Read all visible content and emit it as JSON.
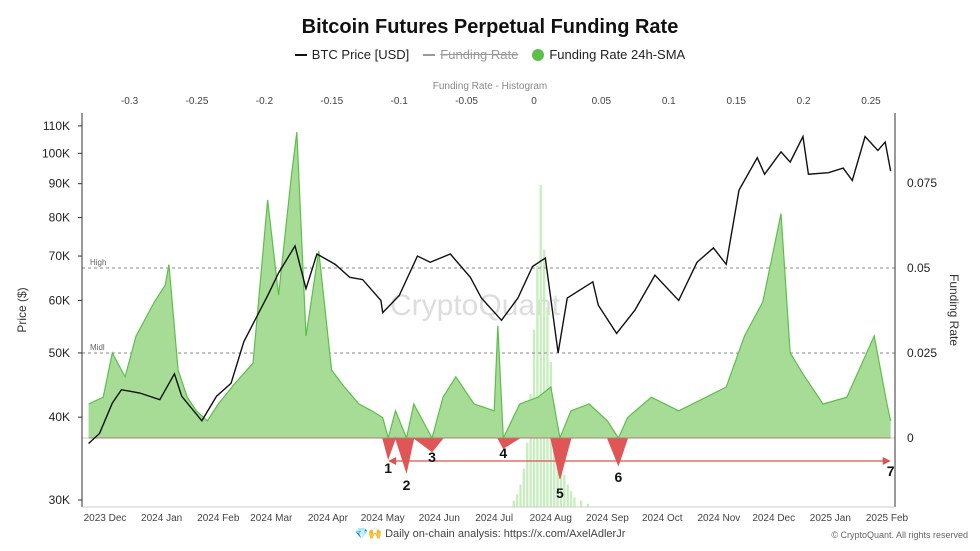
{
  "title": "Bitcoin Futures Perpetual Funding Rate",
  "legend": [
    {
      "label": "BTC Price [USD]",
      "color": "#111111",
      "style": "line"
    },
    {
      "label": "Funding Rate",
      "color": "#999999",
      "style": "line",
      "hidden": true
    },
    {
      "label": "Funding Rate 24h-SMA",
      "color": "#5cbf4a",
      "style": "dot"
    }
  ],
  "footer": {
    "text": "Daily on-chain analysis:",
    "link": "https://x.com/AxelAdlerJr",
    "icons": [
      "gem-icon",
      "raised-hands-icon"
    ],
    "copyright": "© CryptoQuant. All rights reserved"
  },
  "watermark": "CryptoQuant",
  "colors": {
    "price": "#111111",
    "sma_pos": "#5cbf4a",
    "sma_fill": "#a6dc96",
    "sma_neg": "#e05555",
    "hist": "#c8eec0",
    "arrow": "#d9534f",
    "grid": "#888888"
  },
  "chart_data": {
    "type": "line",
    "title": "Bitcoin Futures Perpetual Funding Rate",
    "x_axis": {
      "type": "date",
      "ticks": [
        "2023 Dec",
        "2024 Jan",
        "2024 Feb",
        "2024 Mar",
        "2024 Apr",
        "2024 May",
        "2024 Jun",
        "2024 Jul",
        "2024 Aug",
        "2024 Sep",
        "2024 Oct",
        "2024 Nov",
        "2024 Dec",
        "2025 Jan",
        "2025 Feb"
      ],
      "tick_dates": [
        "2023-12-01",
        "2024-01-01",
        "2024-02-01",
        "2024-03-01",
        "2024-04-01",
        "2024-05-01",
        "2024-06-01",
        "2024-07-01",
        "2024-08-01",
        "2024-09-01",
        "2024-10-01",
        "2024-11-01",
        "2024-12-01",
        "2025-01-01",
        "2025-02-01"
      ]
    },
    "y_left": {
      "label": "Price ($)",
      "scale": "log",
      "range": [
        30000,
        110000
      ],
      "ticks": [
        30000,
        40000,
        50000,
        60000,
        70000,
        80000,
        90000,
        100000,
        110000
      ],
      "tick_labels": [
        "30K",
        "40K",
        "50K",
        "60K",
        "70K",
        "80K",
        "90K",
        "100K",
        "110K"
      ]
    },
    "y_right": {
      "label": "Funding Rate",
      "range": [
        -0.02,
        0.09
      ],
      "ticks": [
        0,
        0.025,
        0.05,
        0.075
      ],
      "tick_labels": [
        "0",
        "0.025",
        "0.05",
        "0.075"
      ]
    },
    "x_top": {
      "label": "Funding Rate - Histogram",
      "ticks": [
        -0.3,
        -0.25,
        -0.2,
        -0.15,
        -0.1,
        -0.05,
        0,
        0.05,
        0.1,
        0.15,
        0.2,
        0.25
      ],
      "tick_labels": [
        "-0.3",
        "-0.25",
        "-0.2",
        "-0.15",
        "-0.1",
        "-0.05",
        "0",
        "0.05",
        "0.1",
        "0.15",
        "0.2",
        "0.25"
      ]
    },
    "reference_lines": [
      {
        "label": "High",
        "value": 0.05
      },
      {
        "label": "Midl",
        "value": 0.025
      }
    ],
    "series": [
      {
        "name": "BTC Price [USD]",
        "axis": "left",
        "points": [
          [
            "2023-11-22",
            36500
          ],
          [
            "2023-11-28",
            37800
          ],
          [
            "2023-12-05",
            42000
          ],
          [
            "2023-12-10",
            44000
          ],
          [
            "2023-12-20",
            43500
          ],
          [
            "2023-12-31",
            42500
          ],
          [
            "2024-01-08",
            46500
          ],
          [
            "2024-01-12",
            43000
          ],
          [
            "2024-01-23",
            39500
          ],
          [
            "2024-01-31",
            43000
          ],
          [
            "2024-02-08",
            45000
          ],
          [
            "2024-02-15",
            52000
          ],
          [
            "2024-02-28",
            61000
          ],
          [
            "2024-03-05",
            66000
          ],
          [
            "2024-03-14",
            72500
          ],
          [
            "2024-03-20",
            62500
          ],
          [
            "2024-03-26",
            70500
          ],
          [
            "2024-04-05",
            68000
          ],
          [
            "2024-04-13",
            65000
          ],
          [
            "2024-04-20",
            64500
          ],
          [
            "2024-04-30",
            60000
          ],
          [
            "2024-05-01",
            57500
          ],
          [
            "2024-05-10",
            61000
          ],
          [
            "2024-05-20",
            70000
          ],
          [
            "2024-05-27",
            68500
          ],
          [
            "2024-06-07",
            70500
          ],
          [
            "2024-06-18",
            65000
          ],
          [
            "2024-06-24",
            60500
          ],
          [
            "2024-07-05",
            56000
          ],
          [
            "2024-07-14",
            60500
          ],
          [
            "2024-07-22",
            67500
          ],
          [
            "2024-07-29",
            69500
          ],
          [
            "2024-08-05",
            50000
          ],
          [
            "2024-08-10",
            60500
          ],
          [
            "2024-08-24",
            64000
          ],
          [
            "2024-08-27",
            59000
          ],
          [
            "2024-09-06",
            53500
          ],
          [
            "2024-09-16",
            58000
          ],
          [
            "2024-09-27",
            65500
          ],
          [
            "2024-10-10",
            60000
          ],
          [
            "2024-10-20",
            68500
          ],
          [
            "2024-10-29",
            72000
          ],
          [
            "2024-11-05",
            68000
          ],
          [
            "2024-11-12",
            88000
          ],
          [
            "2024-11-22",
            98500
          ],
          [
            "2024-11-26",
            93000
          ],
          [
            "2024-12-05",
            100500
          ],
          [
            "2024-12-10",
            97000
          ],
          [
            "2024-12-17",
            106000
          ],
          [
            "2024-12-20",
            93000
          ],
          [
            "2024-12-31",
            93500
          ],
          [
            "2025-01-08",
            95000
          ],
          [
            "2025-01-13",
            91000
          ],
          [
            "2025-01-20",
            106000
          ],
          [
            "2025-01-27",
            101000
          ],
          [
            "2025-01-31",
            104000
          ],
          [
            "2025-02-03",
            94000
          ]
        ]
      },
      {
        "name": "Funding Rate 24h-SMA",
        "axis": "right",
        "points": [
          [
            "2023-11-22",
            0.01
          ],
          [
            "2023-11-30",
            0.012
          ],
          [
            "2023-12-05",
            0.025
          ],
          [
            "2023-12-12",
            0.018
          ],
          [
            "2023-12-18",
            0.03
          ],
          [
            "2023-12-28",
            0.04
          ],
          [
            "2024-01-03",
            0.045
          ],
          [
            "2024-01-05",
            0.051
          ],
          [
            "2024-01-10",
            0.02
          ],
          [
            "2024-01-15",
            0.012
          ],
          [
            "2024-01-20",
            0.008
          ],
          [
            "2024-01-26",
            0.005
          ],
          [
            "2024-02-01",
            0.01
          ],
          [
            "2024-02-10",
            0.016
          ],
          [
            "2024-02-20",
            0.022
          ],
          [
            "2024-02-28",
            0.07
          ],
          [
            "2024-03-05",
            0.042
          ],
          [
            "2024-03-12",
            0.077
          ],
          [
            "2024-03-15",
            0.09
          ],
          [
            "2024-03-20",
            0.03
          ],
          [
            "2024-03-27",
            0.055
          ],
          [
            "2024-04-03",
            0.02
          ],
          [
            "2024-04-10",
            0.015
          ],
          [
            "2024-04-18",
            0.01
          ],
          [
            "2024-04-25",
            0.008
          ],
          [
            "2024-05-01",
            0.006
          ],
          [
            "2024-05-04",
            -0.006
          ],
          [
            "2024-05-08",
            0.008
          ],
          [
            "2024-05-14",
            -0.01
          ],
          [
            "2024-05-18",
            0.01
          ],
          [
            "2024-05-28",
            -0.004
          ],
          [
            "2024-06-03",
            0.012
          ],
          [
            "2024-06-10",
            0.018
          ],
          [
            "2024-06-20",
            0.01
          ],
          [
            "2024-07-01",
            0.008
          ],
          [
            "2024-07-03",
            0.033
          ],
          [
            "2024-07-06",
            -0.003
          ],
          [
            "2024-07-15",
            0.01
          ],
          [
            "2024-07-25",
            0.012
          ],
          [
            "2024-08-01",
            0.015
          ],
          [
            "2024-08-06",
            -0.012
          ],
          [
            "2024-08-12",
            0.008
          ],
          [
            "2024-08-22",
            0.01
          ],
          [
            "2024-09-01",
            0.005
          ],
          [
            "2024-09-07",
            -0.008
          ],
          [
            "2024-09-12",
            0.006
          ],
          [
            "2024-09-25",
            0.012
          ],
          [
            "2024-10-10",
            0.008
          ],
          [
            "2024-10-25",
            0.012
          ],
          [
            "2024-11-05",
            0.015
          ],
          [
            "2024-11-15",
            0.03
          ],
          [
            "2024-11-25",
            0.04
          ],
          [
            "2024-12-05",
            0.066
          ],
          [
            "2024-12-10",
            0.025
          ],
          [
            "2024-12-18",
            0.018
          ],
          [
            "2024-12-28",
            0.01
          ],
          [
            "2025-01-10",
            0.012
          ],
          [
            "2025-01-25",
            0.03
          ],
          [
            "2025-02-01",
            0.01
          ],
          [
            "2025-02-03",
            0.005
          ]
        ]
      }
    ],
    "histogram": {
      "axis": "top",
      "bin_centers": [
        -0.015,
        -0.0125,
        -0.01,
        -0.0075,
        -0.005,
        -0.0025,
        0,
        0.0025,
        0.005,
        0.0075,
        0.01,
        0.0125,
        0.015,
        0.0175,
        0.02,
        0.0225,
        0.025,
        0.0275,
        0.03,
        0.035,
        0.04
      ],
      "relative_frequency": [
        2,
        4,
        7,
        12,
        20,
        35,
        55,
        75,
        100,
        80,
        62,
        45,
        32,
        22,
        15,
        10,
        7,
        5,
        3,
        2,
        1
      ]
    },
    "annotations": [
      {
        "label": "1",
        "date": "2024-05-04"
      },
      {
        "label": "2",
        "date": "2024-05-14"
      },
      {
        "label": "3",
        "date": "2024-05-28"
      },
      {
        "label": "4",
        "date": "2024-07-06"
      },
      {
        "label": "5",
        "date": "2024-08-06"
      },
      {
        "label": "6",
        "date": "2024-09-07"
      },
      {
        "label": "7",
        "date": "2025-02-03"
      }
    ],
    "arrow": {
      "from": "2024-05-04",
      "to": "2025-02-03"
    },
    "grid": false,
    "legend_position": "top"
  }
}
